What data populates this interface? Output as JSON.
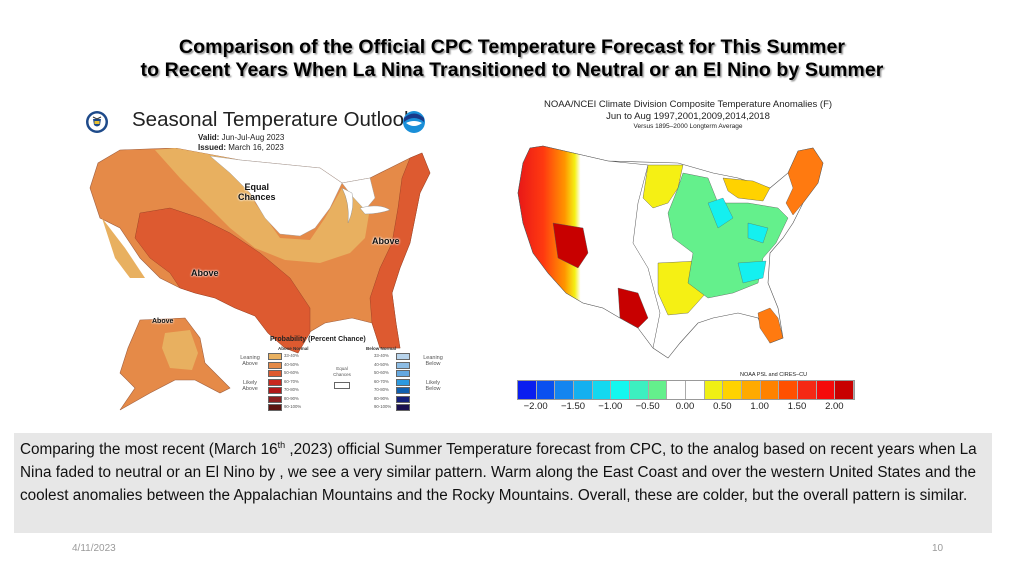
{
  "slide": {
    "title_line1": "Comparison of the Official  CPC Temperature Forecast for This Summer",
    "title_line2": "to Recent Years When La Nina Transitioned to Neutral or an El Nino by Summer",
    "footer_date": "4/11/2023",
    "slide_number": "10"
  },
  "cpc_outlook": {
    "heading": "Seasonal Temperature Outlook",
    "valid_label": "Valid:",
    "valid_value": "Jun-Jul-Aug 2023",
    "issued_label": "Issued:",
    "issued_value": "March 16, 2023",
    "logos": [
      "doc-seal-icon",
      "noaa-logo-icon"
    ],
    "map_labels": {
      "equal": "Equal",
      "chances": "Chances",
      "above_east": "Above",
      "above_west": "Above",
      "above_alaska": "Above"
    },
    "colors": {
      "lean_above": "#e8b060",
      "above_40_50": "#e58a48",
      "above_50_60": "#dd5a30",
      "equal_chances": "#ffffff"
    },
    "legend": {
      "title": "Probability (Percent Chance)",
      "above_header": "Above Normal",
      "below_header": "Below Normal",
      "leaning_above": "Leaning Above",
      "likely_above": "Likely Above",
      "leaning_below": "Leaning Below",
      "likely_below": "Likely Below",
      "equal_chances": "Equal Chances",
      "categories": [
        "33-40%",
        "40-50%",
        "50-60%",
        "60-70%",
        "70-80%",
        "80-90%",
        "90-100%"
      ],
      "above_colors": [
        "#e8b060",
        "#e58a48",
        "#dd5a30",
        "#c8281e",
        "#b01818",
        "#8b2020",
        "#5c1410"
      ],
      "below_colors": [
        "#b8d4ec",
        "#8cbce4",
        "#64a8e0",
        "#2c9ae0",
        "#1060b0",
        "#14207a",
        "#1a1050"
      ]
    }
  },
  "analog_composite": {
    "title_line1": "NOAA/NCEI Climate Division Composite Temperature Anomalies (F)",
    "title_line2": "Jun to Aug   1997,2001,2009,2014,2018",
    "title_line3": "Versus 1895–2000 Longterm Average",
    "credit": "NOAA PSL and CIRES–CU",
    "colorbar": {
      "colors": [
        "#0a1ef0",
        "#0a50f0",
        "#1485f0",
        "#14b0f0",
        "#14d8f0",
        "#14f8f0",
        "#3cf0c0",
        "#64f08c",
        "#ffffff",
        "#ffffff",
        "#f0f014",
        "#ffd200",
        "#ffaa00",
        "#ff8200",
        "#ff5000",
        "#f52814",
        "#f50a0a",
        "#c80000"
      ],
      "tick_labels": [
        "−2.00",
        "−1.50",
        "−1.00",
        "−0.50",
        "0.00",
        "0.50",
        "1.00",
        "1.50",
        "2.00"
      ],
      "tick_values": [
        -2.0,
        -1.5,
        -1.0,
        -0.5,
        0.0,
        0.5,
        1.0,
        1.5,
        2.0
      ],
      "range": [
        -2.25,
        2.25
      ]
    }
  },
  "caption": {
    "part1": "Comparing the most recent (March 16",
    "sup": "th",
    "part2": " ,2023) official Summer Temperature forecast  from CPC, to the analog based on recent years when La Nina faded to neutral or an El Nino by , we see a very similar pattern.  Warm along  the East Coast and over the western United States and the coolest anomalies  between the Appalachian Mountains and the Rocky Mountains.  Overall, these are colder, but the overall pattern is similar."
  }
}
